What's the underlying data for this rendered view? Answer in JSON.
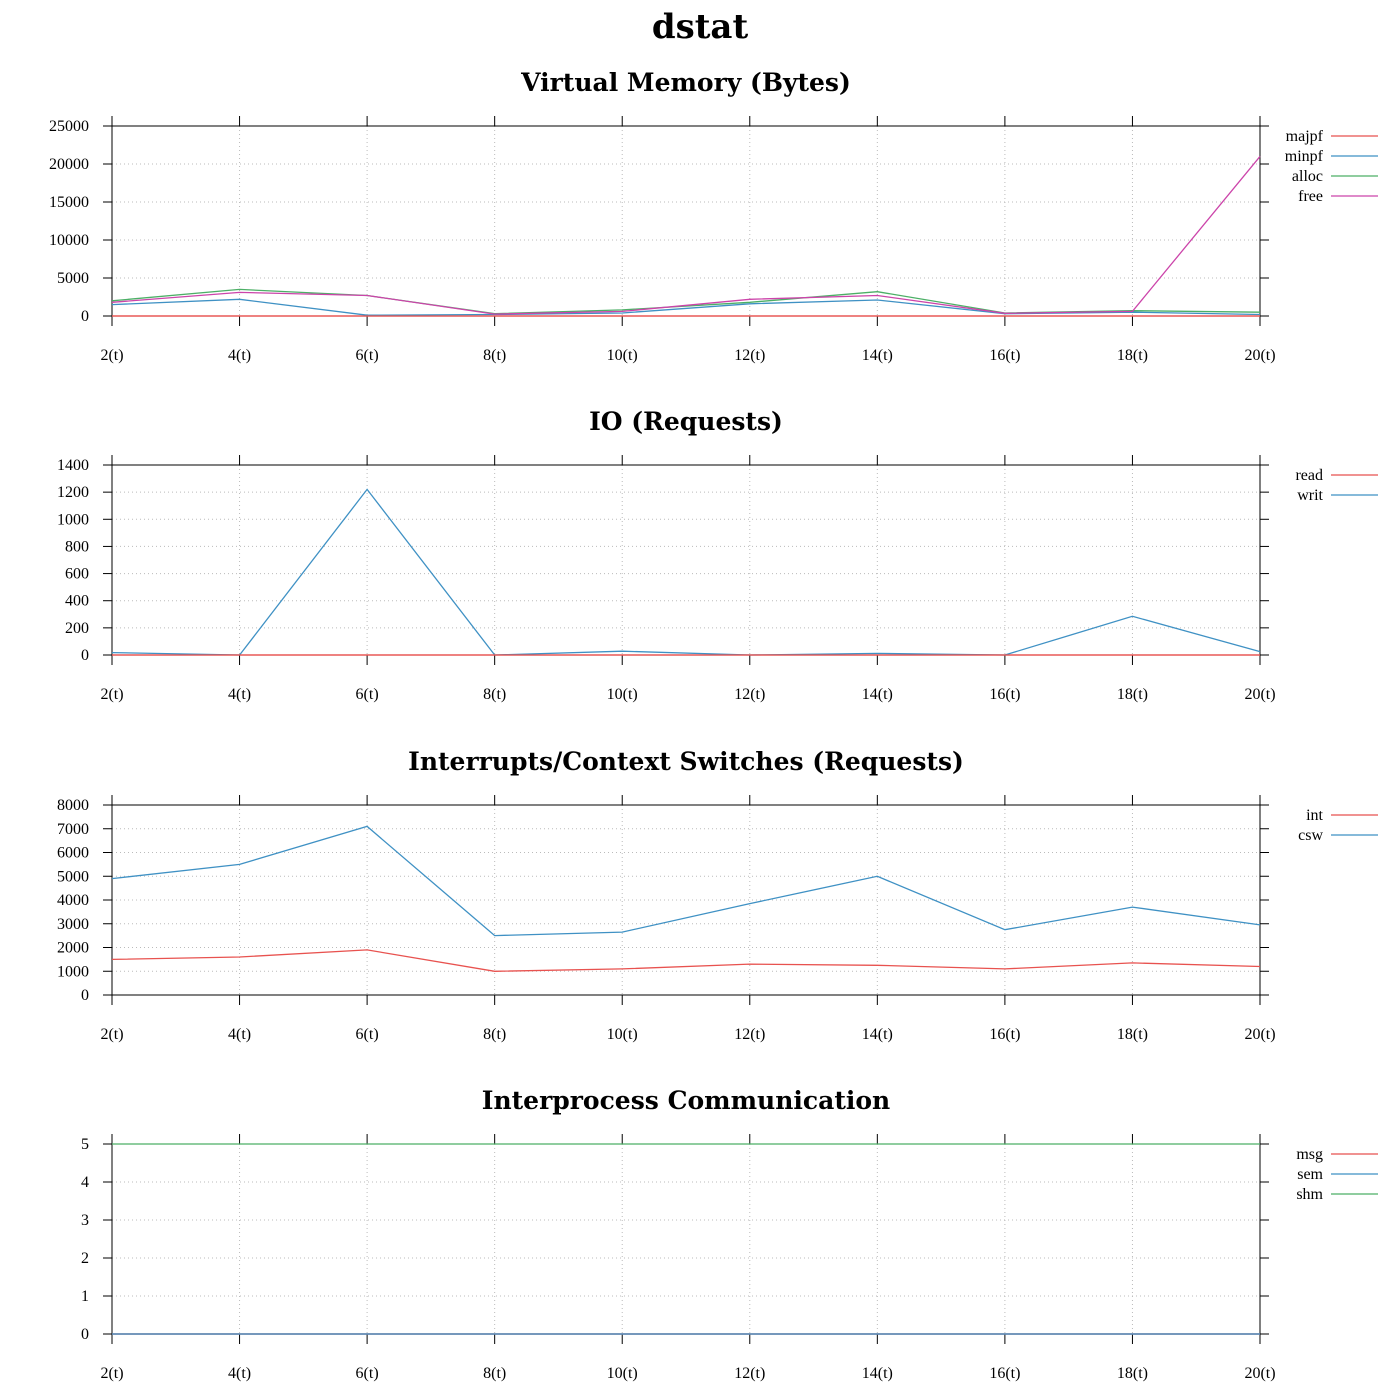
{
  "page_title": "dstat",
  "colors": {
    "red": "#e8524f",
    "blue": "#3f91c4",
    "green": "#4caf66",
    "magenta": "#cc44aa",
    "grid": "#bbbbbb"
  },
  "chart_data": [
    {
      "id": "vm",
      "type": "line",
      "title": "Virtual Memory (Bytes)",
      "categories": [
        "2(t)",
        "4(t)",
        "6(t)",
        "8(t)",
        "10(t)",
        "12(t)",
        "14(t)",
        "16(t)",
        "18(t)",
        "20(t)"
      ],
      "ylim": [
        0,
        25000
      ],
      "yticks": [
        0,
        5000,
        10000,
        15000,
        20000,
        25000
      ],
      "series": [
        {
          "name": "majpf",
          "color": "#e8524f",
          "values": [
            0,
            0,
            0,
            0,
            0,
            0,
            0,
            0,
            0,
            0
          ]
        },
        {
          "name": "minpf",
          "color": "#3f91c4",
          "values": [
            1500,
            2200,
            100,
            200,
            400,
            1600,
            2100,
            300,
            500,
            200
          ]
        },
        {
          "name": "alloc",
          "color": "#4caf66",
          "values": [
            2000,
            3500,
            2700,
            300,
            800,
            1800,
            3200,
            400,
            700,
            500
          ]
        },
        {
          "name": "free",
          "color": "#cc44aa",
          "values": [
            1800,
            3100,
            2700,
            250,
            600,
            2200,
            2700,
            350,
            600,
            21000
          ]
        }
      ]
    },
    {
      "id": "io",
      "type": "line",
      "title": "IO (Requests)",
      "categories": [
        "2(t)",
        "4(t)",
        "6(t)",
        "8(t)",
        "10(t)",
        "12(t)",
        "14(t)",
        "16(t)",
        "18(t)",
        "20(t)"
      ],
      "ylim": [
        0,
        1400
      ],
      "yticks": [
        0,
        200,
        400,
        600,
        800,
        1000,
        1200,
        1400
      ],
      "series": [
        {
          "name": "read",
          "color": "#e8524f",
          "values": [
            0,
            0,
            0,
            0,
            0,
            0,
            0,
            0,
            0,
            0
          ]
        },
        {
          "name": "writ",
          "color": "#3f91c4",
          "values": [
            18,
            0,
            1220,
            0,
            28,
            0,
            12,
            0,
            285,
            25
          ]
        }
      ]
    },
    {
      "id": "sys",
      "type": "line",
      "title": "Interrupts/Context Switches (Requests)",
      "categories": [
        "2(t)",
        "4(t)",
        "6(t)",
        "8(t)",
        "10(t)",
        "12(t)",
        "14(t)",
        "16(t)",
        "18(t)",
        "20(t)"
      ],
      "ylim": [
        0,
        8000
      ],
      "yticks": [
        0,
        1000,
        2000,
        3000,
        4000,
        5000,
        6000,
        7000,
        8000
      ],
      "series": [
        {
          "name": "int",
          "color": "#e8524f",
          "values": [
            1500,
            1600,
            1900,
            1000,
            1100,
            1300,
            1250,
            1100,
            1350,
            1200
          ]
        },
        {
          "name": "csw",
          "color": "#3f91c4",
          "values": [
            4900,
            5500,
            7100,
            2500,
            2650,
            3850,
            5000,
            2750,
            3700,
            2950
          ]
        }
      ]
    },
    {
      "id": "ipc",
      "type": "line",
      "title": "Interprocess Communication",
      "categories": [
        "2(t)",
        "4(t)",
        "6(t)",
        "8(t)",
        "10(t)",
        "12(t)",
        "14(t)",
        "16(t)",
        "18(t)",
        "20(t)"
      ],
      "ylim": [
        0,
        5
      ],
      "yticks": [
        0,
        1,
        2,
        3,
        4,
        5
      ],
      "series": [
        {
          "name": "msg",
          "color": "#e8524f",
          "values": [
            0,
            0,
            0,
            0,
            0,
            0,
            0,
            0,
            0,
            0
          ]
        },
        {
          "name": "sem",
          "color": "#3f91c4",
          "values": [
            0,
            0,
            0,
            0,
            0,
            0,
            0,
            0,
            0,
            0
          ]
        },
        {
          "name": "shm",
          "color": "#4caf66",
          "values": [
            5,
            5,
            5,
            5,
            5,
            5,
            5,
            5,
            5,
            5
          ]
        }
      ]
    }
  ]
}
